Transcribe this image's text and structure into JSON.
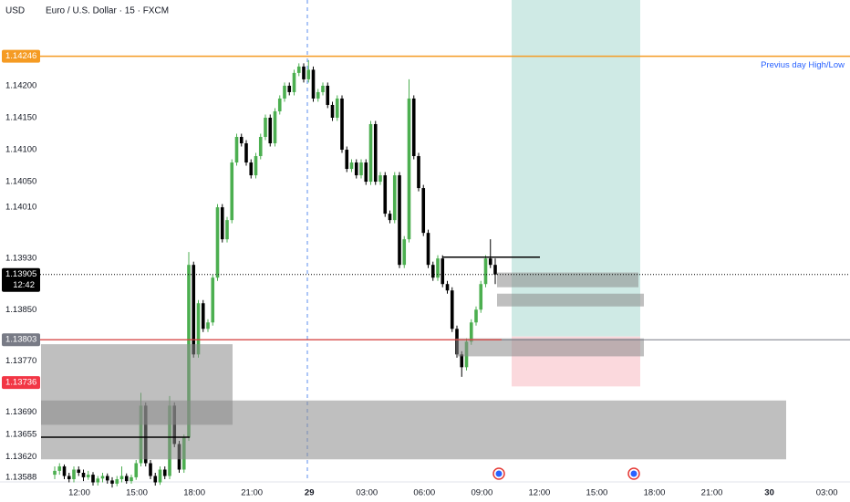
{
  "chart_data": {
    "type": "candlestick",
    "title": "Euro / U.S. Dollar · 15 · FXCM",
    "currency": "USD",
    "up_color": "#4caf50",
    "down_color": "#000000",
    "ylim": [
      1.13585,
      1.14334
    ],
    "yticks": [
      {
        "value": 1.142,
        "label": "1.14200"
      },
      {
        "value": 1.1415,
        "label": "1.14150"
      },
      {
        "value": 1.141,
        "label": "1.14100"
      },
      {
        "value": 1.1405,
        "label": "1.14050"
      },
      {
        "value": 1.1401,
        "label": "1.14010"
      },
      {
        "value": 1.1393,
        "label": "1.13930"
      },
      {
        "value": 1.1385,
        "label": "1.13850"
      },
      {
        "value": 1.1377,
        "label": "1.13770"
      },
      {
        "value": 1.1369,
        "label": "1.13690"
      },
      {
        "value": 1.13655,
        "label": "1.13655"
      },
      {
        "value": 1.1362,
        "label": "1.13620"
      },
      {
        "value": 1.13588,
        "label": "1.13588"
      }
    ],
    "xticks": [
      "12:00",
      "15:00",
      "18:00",
      "21:00",
      "29",
      "03:00",
      "06:00",
      "09:00",
      "12:00",
      "15:00",
      "18:00",
      "21:00",
      "30",
      "03:00"
    ],
    "candles": [
      [
        1.13592,
        1.13605,
        1.13585,
        1.13598
      ],
      [
        1.13598,
        1.1361,
        1.13592,
        1.13605
      ],
      [
        1.13605,
        1.13608,
        1.13585,
        1.1359
      ],
      [
        1.1359,
        1.13595,
        1.1358,
        1.13585
      ],
      [
        1.13585,
        1.13605,
        1.1358,
        1.136
      ],
      [
        1.136,
        1.13605,
        1.1359,
        1.13595
      ],
      [
        1.13595,
        1.136,
        1.13582,
        1.13588
      ],
      [
        1.13588,
        1.13598,
        1.13584,
        1.13592
      ],
      [
        1.13592,
        1.13596,
        1.13575,
        1.1358
      ],
      [
        1.1358,
        1.1359,
        1.13575,
        1.13586
      ],
      [
        1.13586,
        1.13595,
        1.1358,
        1.1359
      ],
      [
        1.1359,
        1.13594,
        1.13578,
        1.13583
      ],
      [
        1.13583,
        1.13588,
        1.13572,
        1.13578
      ],
      [
        1.13578,
        1.1359,
        1.13574,
        1.13585
      ],
      [
        1.13585,
        1.13605,
        1.1358,
        1.1359
      ],
      [
        1.1359,
        1.13594,
        1.13578,
        1.13582
      ],
      [
        1.13582,
        1.13592,
        1.13578,
        1.13588
      ],
      [
        1.13588,
        1.13615,
        1.13584,
        1.1361
      ],
      [
        1.1361,
        1.1372,
        1.13605,
        1.137
      ],
      [
        1.137,
        1.13705,
        1.13605,
        1.1361
      ],
      [
        1.1361,
        1.13615,
        1.13585,
        1.1359
      ],
      [
        1.1359,
        1.13595,
        1.13575,
        1.1358
      ],
      [
        1.1358,
        1.13605,
        1.13576,
        1.136
      ],
      [
        1.136,
        1.13605,
        1.13585,
        1.1359
      ],
      [
        1.1359,
        1.13715,
        1.13585,
        1.137
      ],
      [
        1.137,
        1.13705,
        1.13635,
        1.1364
      ],
      [
        1.1364,
        1.13645,
        1.13595,
        1.136
      ],
      [
        1.136,
        1.13655,
        1.13595,
        1.1365
      ],
      [
        1.1365,
        1.1394,
        1.13645,
        1.1392
      ],
      [
        1.1392,
        1.13925,
        1.13775,
        1.1378
      ],
      [
        1.1378,
        1.13865,
        1.13775,
        1.1386
      ],
      [
        1.1386,
        1.13865,
        1.13815,
        1.1382
      ],
      [
        1.1382,
        1.13835,
        1.13815,
        1.1383
      ],
      [
        1.1383,
        1.13905,
        1.13825,
        1.139
      ],
      [
        1.139,
        1.14015,
        1.13895,
        1.1401
      ],
      [
        1.1401,
        1.14015,
        1.13955,
        1.1396
      ],
      [
        1.1396,
        1.13995,
        1.13955,
        1.1399
      ],
      [
        1.1399,
        1.14085,
        1.13985,
        1.1408
      ],
      [
        1.1408,
        1.14125,
        1.14075,
        1.1412
      ],
      [
        1.1412,
        1.14125,
        1.14105,
        1.1411
      ],
      [
        1.1411,
        1.14115,
        1.14075,
        1.1408
      ],
      [
        1.1408,
        1.14085,
        1.14055,
        1.1406
      ],
      [
        1.1406,
        1.14095,
        1.14055,
        1.1409
      ],
      [
        1.1409,
        1.14125,
        1.14085,
        1.1412
      ],
      [
        1.1412,
        1.14155,
        1.14115,
        1.1415
      ],
      [
        1.1415,
        1.14155,
        1.14105,
        1.1411
      ],
      [
        1.1411,
        1.14165,
        1.14105,
        1.1416
      ],
      [
        1.1416,
        1.14185,
        1.14155,
        1.1418
      ],
      [
        1.1418,
        1.14205,
        1.14175,
        1.142
      ],
      [
        1.142,
        1.14205,
        1.14185,
        1.1419
      ],
      [
        1.1419,
        1.14225,
        1.14185,
        1.1422
      ],
      [
        1.1422,
        1.14235,
        1.14215,
        1.1423
      ],
      [
        1.1423,
        1.14235,
        1.14205,
        1.1421
      ],
      [
        1.1421,
        1.1424,
        1.14205,
        1.14225
      ],
      [
        1.14225,
        1.1423,
        1.14175,
        1.1418
      ],
      [
        1.1418,
        1.14195,
        1.14175,
        1.1419
      ],
      [
        1.1419,
        1.14205,
        1.14185,
        1.142
      ],
      [
        1.142,
        1.14205,
        1.14165,
        1.1417
      ],
      [
        1.1417,
        1.14175,
        1.14145,
        1.1415
      ],
      [
        1.1415,
        1.14185,
        1.14145,
        1.1418
      ],
      [
        1.1418,
        1.14185,
        1.14095,
        1.141
      ],
      [
        1.141,
        1.14105,
        1.14065,
        1.1407
      ],
      [
        1.1407,
        1.14085,
        1.14065,
        1.1408
      ],
      [
        1.1408,
        1.14085,
        1.14055,
        1.1406
      ],
      [
        1.1406,
        1.14085,
        1.14055,
        1.1408
      ],
      [
        1.1408,
        1.14085,
        1.14045,
        1.1405
      ],
      [
        1.1405,
        1.14145,
        1.14045,
        1.1414
      ],
      [
        1.1414,
        1.14145,
        1.14045,
        1.1405
      ],
      [
        1.1405,
        1.14065,
        1.14045,
        1.1406
      ],
      [
        1.1406,
        1.14065,
        1.13995,
        1.14
      ],
      [
        1.14,
        1.14005,
        1.13985,
        1.1399
      ],
      [
        1.1399,
        1.14065,
        1.13985,
        1.1406
      ],
      [
        1.1406,
        1.14065,
        1.13915,
        1.1392
      ],
      [
        1.1392,
        1.13965,
        1.13915,
        1.1396
      ],
      [
        1.1396,
        1.1421,
        1.13955,
        1.1418
      ],
      [
        1.1418,
        1.14185,
        1.14085,
        1.1409
      ],
      [
        1.1409,
        1.14095,
        1.14035,
        1.1404
      ],
      [
        1.1404,
        1.14045,
        1.13965,
        1.1397
      ],
      [
        1.1397,
        1.13975,
        1.13915,
        1.1392
      ],
      [
        1.1392,
        1.13925,
        1.13895,
        1.139
      ],
      [
        1.139,
        1.13935,
        1.13895,
        1.1393
      ],
      [
        1.1393,
        1.13935,
        1.13885,
        1.1389
      ],
      [
        1.1389,
        1.13895,
        1.13875,
        1.1388
      ],
      [
        1.1388,
        1.13885,
        1.13815,
        1.1382
      ],
      [
        1.1382,
        1.13825,
        1.13775,
        1.1378
      ],
      [
        1.1378,
        1.13785,
        1.13745,
        1.1376
      ],
      [
        1.1376,
        1.13805,
        1.13755,
        1.138
      ],
      [
        1.138,
        1.13835,
        1.13795,
        1.1383
      ],
      [
        1.1383,
        1.13855,
        1.13825,
        1.1385
      ],
      [
        1.1385,
        1.13895,
        1.13845,
        1.1389
      ],
      [
        1.1389,
        1.13935,
        1.13885,
        1.1393
      ],
      [
        1.1393,
        1.1396,
        1.13915,
        1.1392
      ],
      [
        1.1392,
        1.1393,
        1.1389,
        1.13905
      ]
    ],
    "price_lines": [
      {
        "value": 1.14246,
        "label": "1.14246",
        "color": "#f59b23",
        "line": true
      },
      {
        "value": 1.13905,
        "label": "1.13905",
        "color": "#000000",
        "line": true
      },
      {
        "value": 1.13803,
        "label": "1.13803",
        "color": "#787b86",
        "line": true
      },
      {
        "value": 1.13736,
        "label": "1.13736",
        "color": "#f23645",
        "line": false
      }
    ],
    "countdown": "12:42",
    "annotation": "Previus day High/Low",
    "zones": [
      [
        1.1367,
        1.13796
      ],
      [
        1.13616,
        1.13708
      ],
      [
        1.13885,
        1.13908
      ],
      [
        1.13855,
        1.13875
      ],
      [
        1.13777,
        1.13805
      ]
    ],
    "target": [
      1.13808,
      1.14334
    ],
    "stop": [
      1.1373,
      1.13808
    ]
  }
}
